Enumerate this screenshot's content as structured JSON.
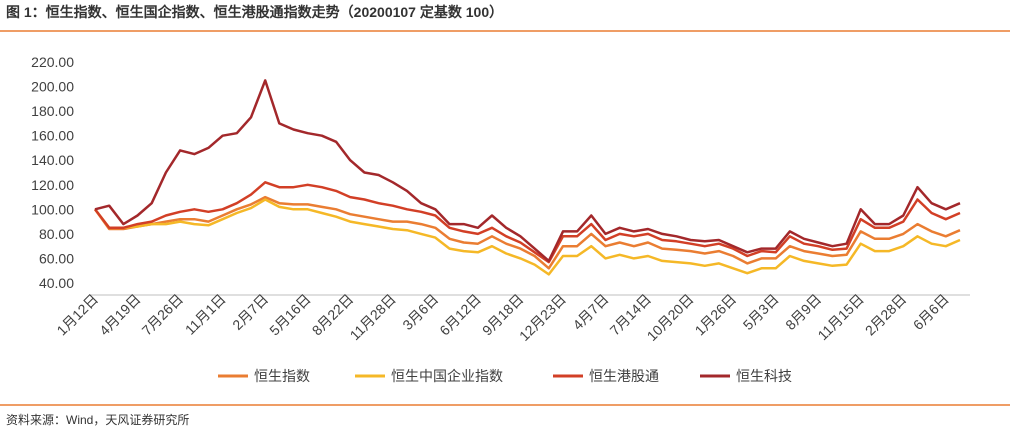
{
  "chart_data": {
    "type": "line",
    "title": "图 1：恒生指数、恒生国企指数、恒生港股通指数走势（20200107 定基数 100）",
    "source": "资料来源：Wind，天风证券研究所",
    "categories": [
      "1月12日",
      null,
      null,
      "4月19日",
      null,
      null,
      "7月26日",
      null,
      null,
      "11月1日",
      null,
      null,
      "2月7日",
      null,
      null,
      "5月16日",
      null,
      null,
      "8月22日",
      null,
      null,
      "11月28日",
      null,
      null,
      "3月6日",
      null,
      null,
      "6月12日",
      null,
      null,
      "9月18日",
      null,
      null,
      "12月23日",
      null,
      null,
      "4月7日",
      null,
      null,
      "7月14日",
      null,
      null,
      "10月20日",
      null,
      null,
      "1月26日",
      null,
      null,
      "5月3日",
      null,
      null,
      "8月9日",
      null,
      null,
      "11月15日",
      null,
      null,
      "2月28日",
      null,
      null,
      "6月6日",
      null
    ],
    "series": [
      {
        "name": "恒生指数",
        "color": "#ea7d32",
        "values": [
          100,
          84,
          84,
          86,
          88,
          90,
          92,
          92,
          90,
          95,
          100,
          104,
          110,
          105,
          104,
          104,
          102,
          100,
          96,
          94,
          92,
          90,
          90,
          88,
          85,
          76,
          73,
          72,
          78,
          72,
          68,
          62,
          52,
          70,
          70,
          80,
          70,
          73,
          70,
          73,
          68,
          67,
          66,
          64,
          66,
          62,
          56,
          60,
          60,
          70,
          66,
          64,
          62,
          63,
          82,
          76,
          76,
          80,
          88,
          82,
          78,
          83
        ]
      },
      {
        "name": "恒生中国企业指数",
        "color": "#f5b827",
        "values": [
          100,
          85,
          85,
          86,
          88,
          88,
          90,
          88,
          87,
          92,
          97,
          101,
          108,
          102,
          100,
          100,
          97,
          94,
          90,
          88,
          86,
          84,
          83,
          80,
          77,
          68,
          66,
          65,
          70,
          64,
          60,
          55,
          47,
          62,
          62,
          70,
          60,
          63,
          60,
          62,
          58,
          57,
          56,
          54,
          56,
          52,
          48,
          52,
          52,
          62,
          58,
          56,
          54,
          55,
          72,
          66,
          66,
          70,
          78,
          72,
          70,
          75
        ]
      },
      {
        "name": "恒生港股通",
        "color": "#d23f26",
        "values": [
          100,
          85,
          85,
          88,
          90,
          95,
          98,
          100,
          98,
          100,
          105,
          112,
          122,
          118,
          118,
          120,
          118,
          115,
          110,
          108,
          105,
          103,
          100,
          98,
          95,
          85,
          82,
          80,
          85,
          78,
          73,
          65,
          57,
          78,
          78,
          88,
          75,
          80,
          78,
          80,
          75,
          74,
          72,
          70,
          72,
          68,
          62,
          66,
          65,
          78,
          72,
          70,
          67,
          68,
          92,
          85,
          85,
          90,
          108,
          97,
          92,
          97
        ]
      },
      {
        "name": "恒生科技",
        "color": "#a3282b",
        "values": [
          100,
          103,
          88,
          95,
          105,
          130,
          148,
          145,
          150,
          160,
          162,
          175,
          205,
          170,
          165,
          162,
          160,
          155,
          140,
          130,
          128,
          122,
          115,
          105,
          100,
          88,
          88,
          85,
          95,
          85,
          78,
          68,
          58,
          82,
          82,
          95,
          80,
          85,
          82,
          84,
          80,
          78,
          75,
          74,
          75,
          70,
          65,
          68,
          68,
          82,
          76,
          73,
          70,
          72,
          100,
          88,
          88,
          95,
          118,
          105,
          100,
          105
        ]
      }
    ],
    "ylim": [
      40,
      220
    ],
    "yticks": [
      {
        "value": 40,
        "label": "40.00"
      },
      {
        "value": 60,
        "label": "60.00"
      },
      {
        "value": 80,
        "label": "80.00"
      },
      {
        "value": 100,
        "label": "100.00"
      },
      {
        "value": 120,
        "label": "120.00"
      },
      {
        "value": 140,
        "label": "140.00"
      },
      {
        "value": 160,
        "label": "160.00"
      },
      {
        "value": 180,
        "label": "180.00"
      },
      {
        "value": 200,
        "label": "200.00"
      },
      {
        "value": 220,
        "label": "220.00"
      }
    ]
  }
}
